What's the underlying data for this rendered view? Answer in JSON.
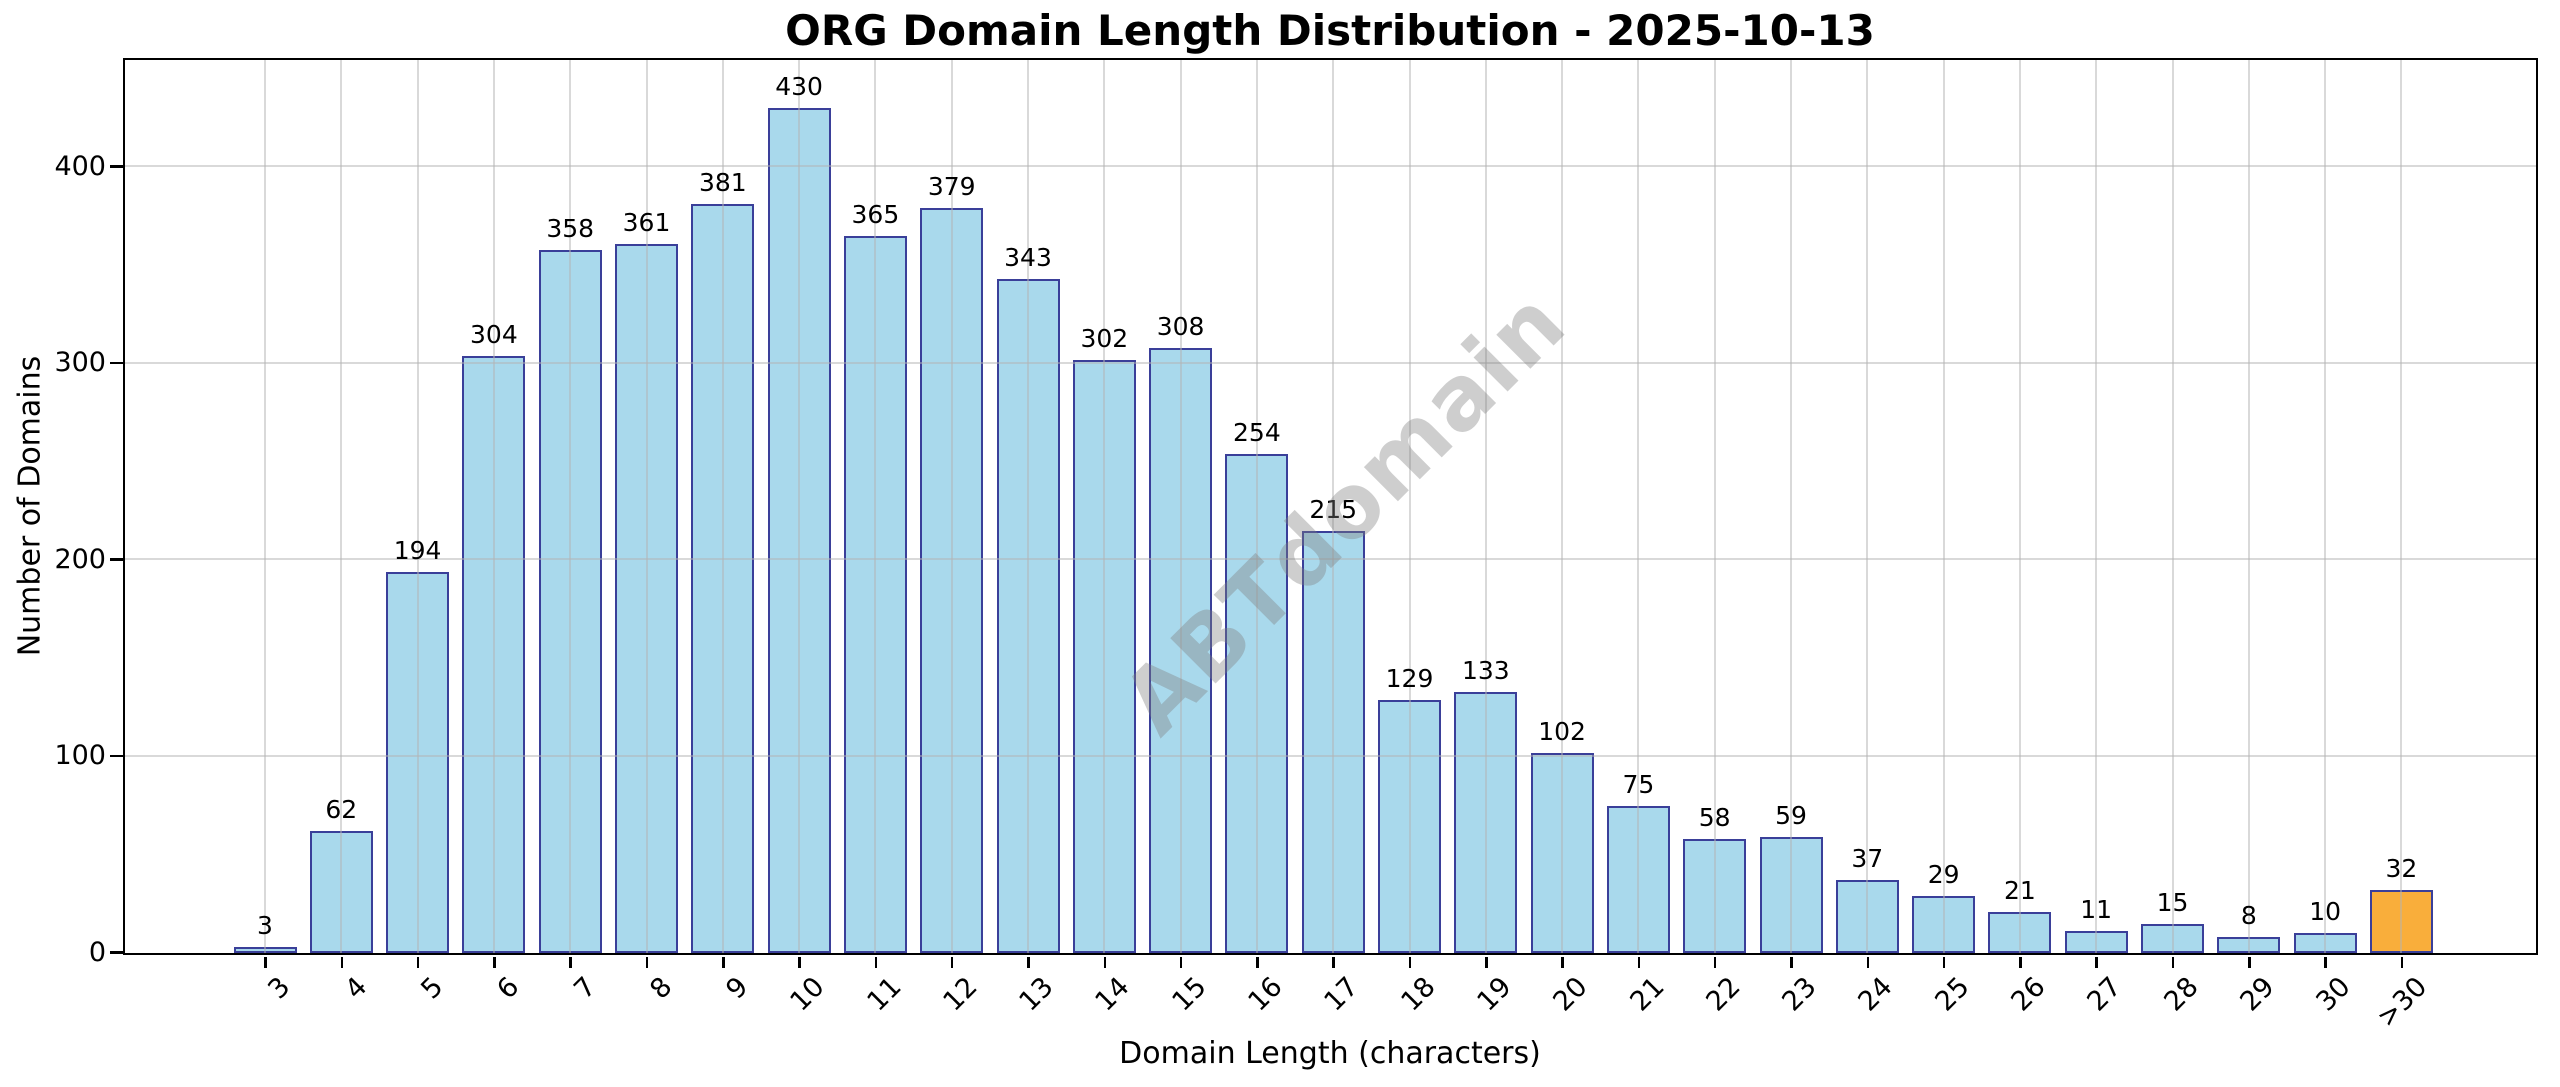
{
  "chart_data": {
    "type": "bar",
    "title": "ORG Domain Length Distribution - 2025-10-13",
    "xlabel": "Domain Length (characters)",
    "ylabel": "Number of Domains",
    "categories": [
      "3",
      "4",
      "5",
      "6",
      "7",
      "8",
      "9",
      "10",
      "11",
      "12",
      "13",
      "14",
      "15",
      "16",
      "17",
      "18",
      "19",
      "20",
      "21",
      "22",
      "23",
      "24",
      "25",
      "26",
      "27",
      "28",
      "29",
      "30",
      ">30"
    ],
    "values": [
      3,
      62,
      194,
      304,
      358,
      361,
      381,
      430,
      365,
      379,
      343,
      302,
      308,
      254,
      215,
      129,
      133,
      102,
      75,
      58,
      59,
      37,
      29,
      21,
      11,
      15,
      8,
      10,
      32
    ],
    "bar_value_labels_shown": true,
    "yticks": [
      0,
      100,
      200,
      300,
      400
    ],
    "ylim": [
      0,
      454
    ],
    "grid": true,
    "legend_position": "none",
    "highlight_category": ">30",
    "watermark": "ABTdomain",
    "colors": {
      "bar_fill": "#A9D9EC",
      "bar_edge": "#3A3F99",
      "highlight_fill": "#F9AE3B",
      "grid": "#B4B4B4",
      "watermark_gray": "#808080",
      "axis_text": "#000000"
    }
  }
}
